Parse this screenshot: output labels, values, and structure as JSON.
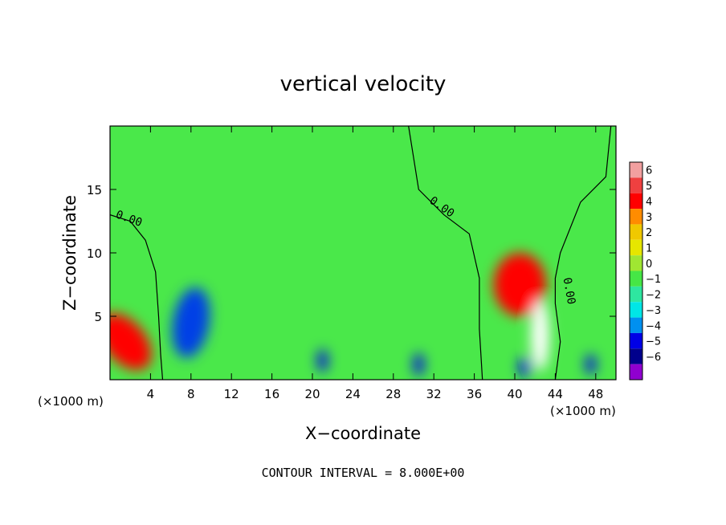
{
  "chart_data": {
    "type": "heatmap",
    "title": "vertical velocity",
    "xlabel": "X−coordinate",
    "ylabel": "Z−coordinate",
    "x_unit_left": "(×1000 m)",
    "x_unit_right": "(×1000 m)",
    "footer": "CONTOUR INTERVAL = 8.000E+00",
    "xlim": [
      0,
      50
    ],
    "ylim": [
      0,
      20
    ],
    "x_ticks": [
      4,
      8,
      12,
      16,
      20,
      24,
      28,
      32,
      36,
      40,
      44,
      48
    ],
    "x_tick_labels": [
      "4",
      "8",
      "12",
      "16",
      "20",
      "24",
      "28",
      "32",
      "36",
      "40",
      "44",
      "48"
    ],
    "y_ticks": [
      5,
      10,
      15
    ],
    "y_tick_labels": [
      "5",
      "10",
      "15"
    ],
    "colorbar": {
      "labels": [
        "6",
        "5",
        "4",
        "3",
        "2",
        "1",
        "0",
        "−1",
        "−2",
        "−3",
        "−4",
        "−5",
        "−6"
      ],
      "colors": [
        "#f2a0a0",
        "#ef4040",
        "#ff0000",
        "#ff8c00",
        "#f0c800",
        "#e6e600",
        "#a0e632",
        "#46e646",
        "#2ee6a0",
        "#00e6e6",
        "#0090f0",
        "#0000e6",
        "#00008c",
        "#9000d0"
      ]
    },
    "background_color": "#4ae84a",
    "features": [
      {
        "x": 1.5,
        "z": 3.0,
        "rx": 2.0,
        "rz": 2.6,
        "rot": -40,
        "color": "#ff0000"
      },
      {
        "x": 8.0,
        "z": 4.5,
        "rx": 1.8,
        "rz": 2.8,
        "rot": 10,
        "color": "#0040e6"
      },
      {
        "x": 40.5,
        "z": 7.5,
        "rx": 2.6,
        "rz": 2.5,
        "rot": 0,
        "color": "#ff0000"
      },
      {
        "x": 42.5,
        "z": 3.5,
        "rx": 0.9,
        "rz": 2.8,
        "rot": 0,
        "color": "#ffffff"
      },
      {
        "x": 30.5,
        "z": 1.2,
        "rx": 0.5,
        "rz": 0.9,
        "rot": 0,
        "color": "#0000e6"
      },
      {
        "x": 21.0,
        "z": 1.5,
        "rx": 0.5,
        "rz": 0.9,
        "rot": 0,
        "color": "#0000e6"
      },
      {
        "x": 41.0,
        "z": 1.0,
        "rx": 0.6,
        "rz": 0.8,
        "rot": 0,
        "color": "#0000e6"
      },
      {
        "x": 47.5,
        "z": 1.2,
        "rx": 0.5,
        "rz": 0.8,
        "rot": 0,
        "color": "#0000e6"
      }
    ],
    "contour_label": "0.00",
    "contours": [
      [
        [
          0,
          13
        ],
        [
          2,
          12.5
        ],
        [
          3.5,
          11
        ],
        [
          4.5,
          8.5
        ],
        [
          4.8,
          5
        ],
        [
          5,
          2
        ],
        [
          5.2,
          0
        ]
      ],
      [
        [
          29.5,
          20
        ],
        [
          30.5,
          15
        ],
        [
          33,
          13
        ],
        [
          35.5,
          11.5
        ],
        [
          36.5,
          8
        ],
        [
          36.5,
          4
        ],
        [
          36.8,
          0
        ]
      ],
      [
        [
          49.5,
          20
        ],
        [
          49,
          16
        ],
        [
          46.5,
          14
        ],
        [
          44.5,
          10
        ],
        [
          44,
          8
        ],
        [
          44,
          6
        ],
        [
          44.5,
          3
        ],
        [
          44,
          0
        ]
      ]
    ]
  }
}
